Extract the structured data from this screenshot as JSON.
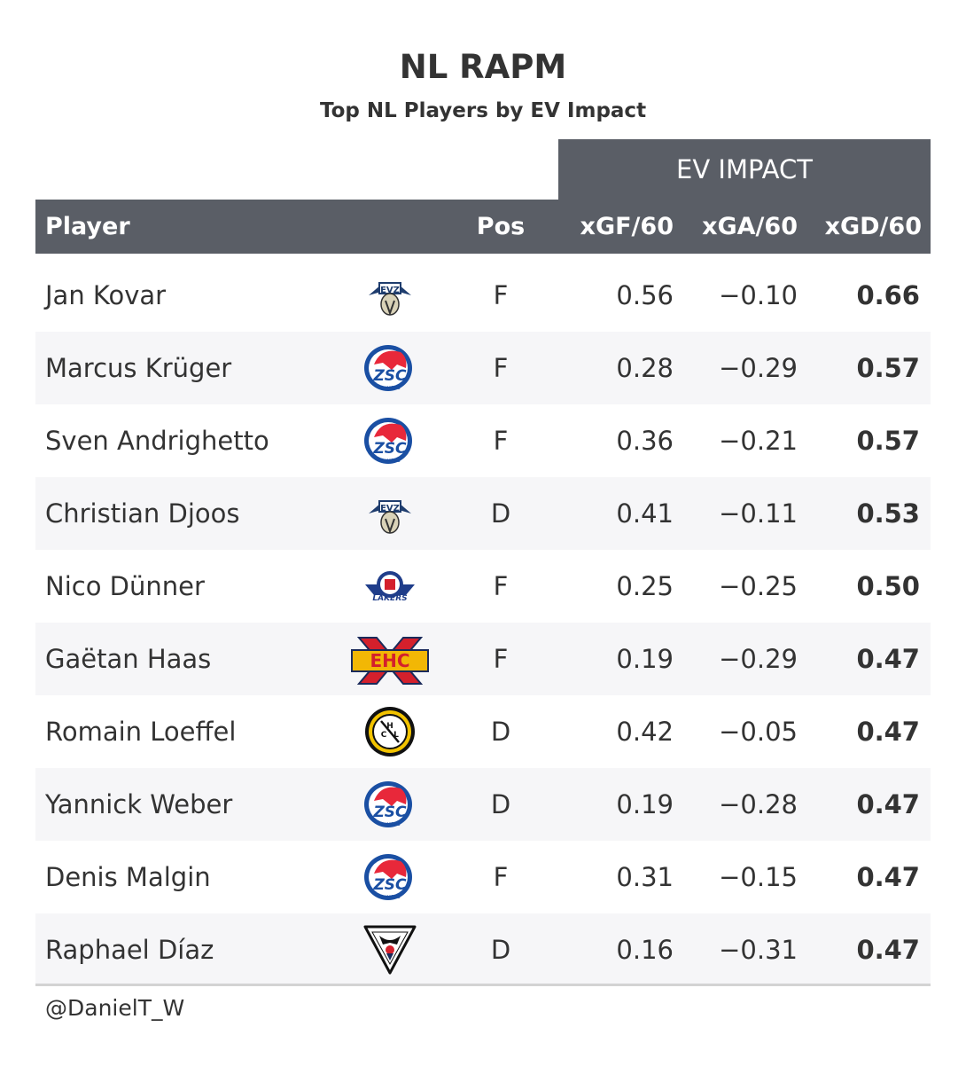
{
  "title": "NL RAPM",
  "subtitle": "Top NL Players by EV Impact",
  "spanner_label": "EV IMPACT",
  "columns": {
    "player": "Player",
    "pos": "Pos",
    "xgf": "xGF/60",
    "xga": "xGA/60",
    "xgd": "xGD/60"
  },
  "header_color": "#5a5e66",
  "stripe_color": "#f6f6f8",
  "source": "@DanielT_W",
  "chart_data": {
    "type": "table",
    "title": "NL RAPM",
    "subtitle": "Top NL Players by EV Impact",
    "columns": [
      "Player",
      "Pos",
      "xGF/60",
      "xGA/60",
      "xGD/60"
    ],
    "rows": [
      {
        "player": "Jan Kovar",
        "team_logo": "evz-logo",
        "pos": "F",
        "xgf": "0.56",
        "xga": "−0.10",
        "xgd": "0.66"
      },
      {
        "player": "Marcus Krüger",
        "team_logo": "zsc-lions-logo",
        "pos": "F",
        "xgf": "0.28",
        "xga": "−0.29",
        "xgd": "0.57"
      },
      {
        "player": "Sven Andrighetto",
        "team_logo": "zsc-lions-logo",
        "pos": "F",
        "xgf": "0.36",
        "xga": "−0.21",
        "xgd": "0.57"
      },
      {
        "player": "Christian Djoos",
        "team_logo": "evz-logo",
        "pos": "D",
        "xgf": "0.41",
        "xga": "−0.11",
        "xgd": "0.53"
      },
      {
        "player": "Nico Dünner",
        "team_logo": "lakers-logo",
        "pos": "F",
        "xgf": "0.25",
        "xga": "−0.25",
        "xgd": "0.50"
      },
      {
        "player": "Gaëtan Haas",
        "team_logo": "ehc-logo",
        "pos": "F",
        "xgf": "0.19",
        "xga": "−0.29",
        "xgd": "0.47"
      },
      {
        "player": "Romain Loeffel",
        "team_logo": "hc-lugano-logo",
        "pos": "D",
        "xgf": "0.42",
        "xga": "−0.05",
        "xgd": "0.47"
      },
      {
        "player": "Yannick Weber",
        "team_logo": "zsc-lions-logo",
        "pos": "D",
        "xgf": "0.19",
        "xga": "−0.28",
        "xgd": "0.47"
      },
      {
        "player": "Denis Malgin",
        "team_logo": "zsc-lions-logo",
        "pos": "F",
        "xgf": "0.31",
        "xga": "−0.15",
        "xgd": "0.47"
      },
      {
        "player": "Raphael Díaz",
        "team_logo": "fribourg-logo",
        "pos": "D",
        "xgf": "0.16",
        "xga": "−0.31",
        "xgd": "0.47"
      }
    ]
  }
}
